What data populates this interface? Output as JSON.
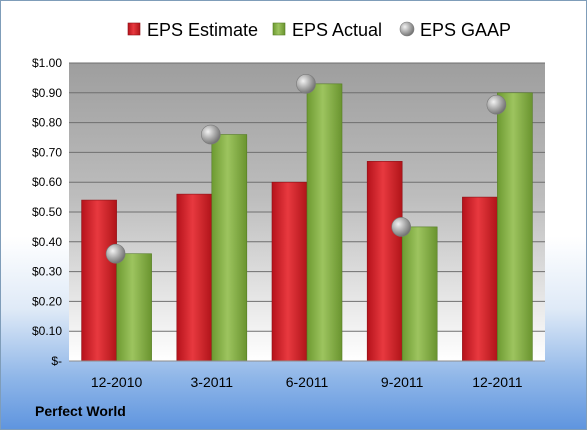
{
  "company": "Perfect World",
  "colors": {
    "estimate": "#cc1f26",
    "actual": "#82ad44",
    "gaap": "#a9a9a9",
    "plot_background_top": "#9e9e9e",
    "plot_background_bottom": "#ffffff"
  },
  "chart_data": {
    "type": "bar",
    "categories": [
      "12-2010",
      "3-2011",
      "6-2011",
      "9-2011",
      "12-2011"
    ],
    "series": [
      {
        "name": "EPS Estimate",
        "type": "bar",
        "values": [
          0.54,
          0.56,
          0.6,
          0.67,
          0.55
        ]
      },
      {
        "name": "EPS Actual",
        "type": "bar",
        "values": [
          0.36,
          0.76,
          0.93,
          0.45,
          0.9
        ]
      },
      {
        "name": "EPS GAAP",
        "type": "scatter",
        "values": [
          0.36,
          0.76,
          0.93,
          0.45,
          0.86
        ]
      }
    ],
    "ylim": [
      0,
      1.0
    ],
    "yticks": [
      "$-",
      "$0.10",
      "$0.20",
      "$0.30",
      "$0.40",
      "$0.50",
      "$0.60",
      "$0.70",
      "$0.80",
      "$0.90",
      "$1.00"
    ],
    "title": "",
    "xlabel": "",
    "ylabel": "",
    "grid": true,
    "legend_position": "top"
  }
}
